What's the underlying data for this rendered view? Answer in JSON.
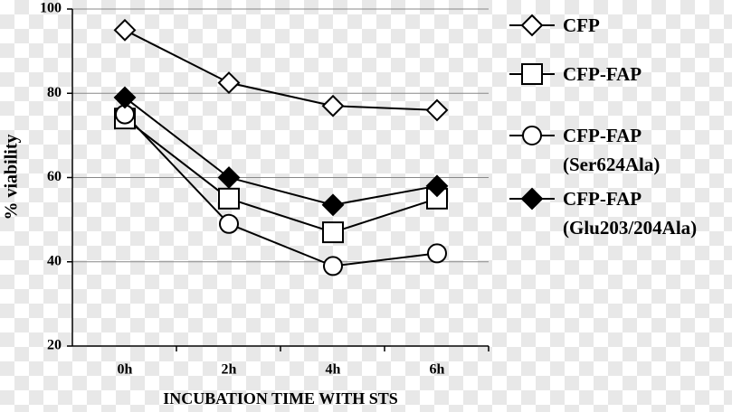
{
  "chart_data": {
    "type": "line",
    "x_label": "INCUBATION TIME WITH STS",
    "y_label": "% viability",
    "categories": [
      "0h",
      "2h",
      "4h",
      "6h"
    ],
    "ylim": [
      20,
      100
    ],
    "yticks": [
      20,
      40,
      60,
      80,
      100
    ],
    "grid": true,
    "series": [
      {
        "name": "CFP",
        "color": "#000000",
        "marker": "diamond",
        "filled": false,
        "values": [
          95,
          82.5,
          77,
          76
        ]
      },
      {
        "name": "CFP-FAP",
        "color": "#000000",
        "marker": "square",
        "filled": false,
        "values": [
          74,
          55,
          47,
          55
        ]
      },
      {
        "name": "CFP-FAP (Ser624Ala)",
        "color": "#000000",
        "marker": "circle",
        "filled": false,
        "values": [
          75,
          49,
          39,
          42
        ]
      },
      {
        "name": "CFP-FAP (Glu203/204Ala)",
        "color": "#000000",
        "marker": "diamond",
        "filled": true,
        "values": [
          79,
          60,
          53.5,
          58
        ]
      }
    ]
  }
}
